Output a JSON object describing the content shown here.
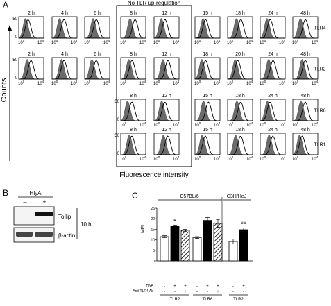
{
  "panel_letters": {
    "a": "A",
    "b": "B",
    "c": "C"
  },
  "panel_a": {
    "boxed_label": "No TLR up-regulation",
    "y_axis_label": "Counts",
    "x_axis_label": "Fluorescence intensity",
    "y_tick_top": "50",
    "y_tick_zero": "0",
    "x_tick_1": "10",
    "x_tick_2": "10",
    "x_tick_exp": "4",
    "rows": [
      {
        "label": "TLR4",
        "start_col": 0,
        "times": [
          "2 h",
          "4 h",
          "6 h",
          "8 h",
          "12 h",
          "15 h",
          "18 h",
          "24 h",
          "48 h"
        ]
      },
      {
        "label": "TLR2",
        "start_col": 0,
        "times": [
          "2 h",
          "4 h",
          "6 h",
          "8 h",
          "12 h",
          "18 h",
          "20 h",
          "24 h",
          "48 h"
        ]
      },
      {
        "label": "TLR6",
        "start_col": 3,
        "times": [
          "8 h",
          "12 h",
          "15 h",
          "18 h",
          "24 h",
          "48 h"
        ]
      },
      {
        "label": "TLR1",
        "start_col": 3,
        "times": [
          "8 h",
          "12 h",
          "15 h",
          "18 h",
          "24 h",
          "48 h"
        ]
      }
    ]
  },
  "panel_b": {
    "treatment": "HlyA",
    "minus": "–",
    "plus": "+",
    "band_labels": [
      "Tollip",
      "β-actin"
    ],
    "time": "10 h"
  },
  "panel_c": {
    "group_labels": [
      "C57BL/6",
      "C3H/HeJ"
    ],
    "row_labels": [
      "HlyA",
      "Anti-TLR4 Ab"
    ],
    "treatment_signs": {
      "hlya": [
        "-",
        "+",
        "+",
        "-",
        "+",
        "+",
        "-",
        "+"
      ],
      "anti_tlr4": [
        "-",
        "-",
        "+",
        "-",
        "-",
        "+",
        "-",
        "-"
      ]
    },
    "receptors": [
      "TLR2",
      "TLR6",
      "TLR2"
    ],
    "significance": [
      "*",
      "**"
    ]
  },
  "chart_data": {
    "type": "bar",
    "ylabel": "MFI",
    "ylim": [
      0,
      25
    ],
    "yticks": [
      "0",
      "5",
      "10",
      "15",
      "20",
      "25"
    ],
    "bars": [
      {
        "group": "TLR2 C57BL/6",
        "hlya": "-",
        "ab": "-",
        "value": 11.5,
        "err": 0.5,
        "fill": "white"
      },
      {
        "group": "TLR2 C57BL/6",
        "hlya": "+",
        "ab": "-",
        "value": 16.6,
        "err": 0.4,
        "fill": "black"
      },
      {
        "group": "TLR2 C57BL/6",
        "hlya": "+",
        "ab": "+",
        "value": 14.5,
        "err": 0.5,
        "fill": "hatched"
      },
      {
        "group": "TLR6 C57BL/6",
        "hlya": "-",
        "ab": "-",
        "value": 11.1,
        "err": 0.4,
        "fill": "white"
      },
      {
        "group": "TLR6 C57BL/6",
        "hlya": "+",
        "ab": "-",
        "value": 19.2,
        "err": 1.4,
        "fill": "black"
      },
      {
        "group": "TLR6 C57BL/6",
        "hlya": "+",
        "ab": "+",
        "value": 17.8,
        "err": 1.9,
        "fill": "hatched"
      },
      {
        "group": "TLR2 C3H/HeJ",
        "hlya": "-",
        "ab": "-",
        "value": 9.2,
        "err": 1.2,
        "fill": "white"
      },
      {
        "group": "TLR2 C3H/HeJ",
        "hlya": "+",
        "ab": "-",
        "value": 14.8,
        "err": 0.8,
        "fill": "black"
      }
    ]
  }
}
